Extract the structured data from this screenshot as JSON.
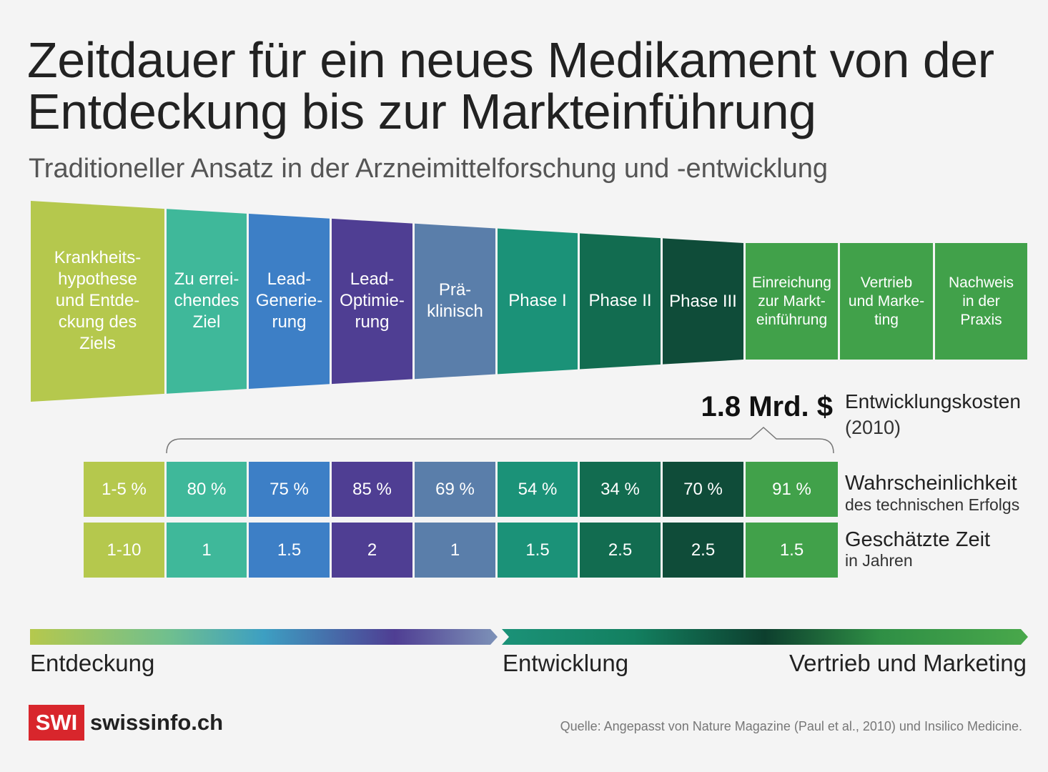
{
  "title": "Zeitdauer für ein neues Medikament von der Entdeckung bis zur Markteinführung",
  "subtitle": "Traditioneller Ansatz in der Arzneimittelforschung und -entwicklung",
  "stages": [
    {
      "label": "Krankheits-\nhypothese\nund Entde-\nckung des\nZiels",
      "color": "#b5c84d",
      "probability": "1-5 %",
      "years": "1-10"
    },
    {
      "label": "Zu errei-\nchendes\nZiel",
      "color": "#3fb89a",
      "probability": "80 %",
      "years": "1"
    },
    {
      "label": "Lead-\nGenerie-\nrung",
      "color": "#3d7fc6",
      "probability": "75 %",
      "years": "1.5"
    },
    {
      "label": "Lead-\nOptimie-\nrung",
      "color": "#4f3e93",
      "probability": "85 %",
      "years": "2"
    },
    {
      "label": "Prä-\nklinisch",
      "color": "#5a7eaa",
      "probability": "69 %",
      "years": "1"
    },
    {
      "label": "Phase I",
      "color": "#1b9278",
      "probability": "54 %",
      "years": "1.5"
    },
    {
      "label": "Phase II",
      "color": "#126c50",
      "probability": "34 %",
      "years": "2.5"
    },
    {
      "label": "Phase III",
      "color": "#0f4c39",
      "probability": "70 %",
      "years": "2.5"
    },
    {
      "label": "Einreichung\nzur Markt-\neinführung",
      "color": "#41a14a",
      "probability": "91 %",
      "years": "1.5"
    },
    {
      "label": "Vertrieb\nund Marke-\nting",
      "color": "#41a14a"
    },
    {
      "label": "Nachweis\nin der\nPraxis",
      "color": "#41a14a"
    }
  ],
  "cost": {
    "value": "1.8 Mrd. $",
    "label": "Entwicklungskosten",
    "year": "(2010)"
  },
  "rows": {
    "probability_title": "Wahrscheinlichkeit",
    "probability_sub": "des technischen Erfolgs",
    "time_title": "Geschätzte Zeit",
    "time_sub": "in Jahren"
  },
  "phases": {
    "discovery": "Entdeckung",
    "development": "Entwicklung",
    "marketing": "Vertrieb und Marketing"
  },
  "brand": {
    "logo": "SWI",
    "name": "swissinfo.ch"
  },
  "source": "Quelle: Angepasst von Nature Magazine (Paul et al., 2010) und Insilico Medicine."
}
